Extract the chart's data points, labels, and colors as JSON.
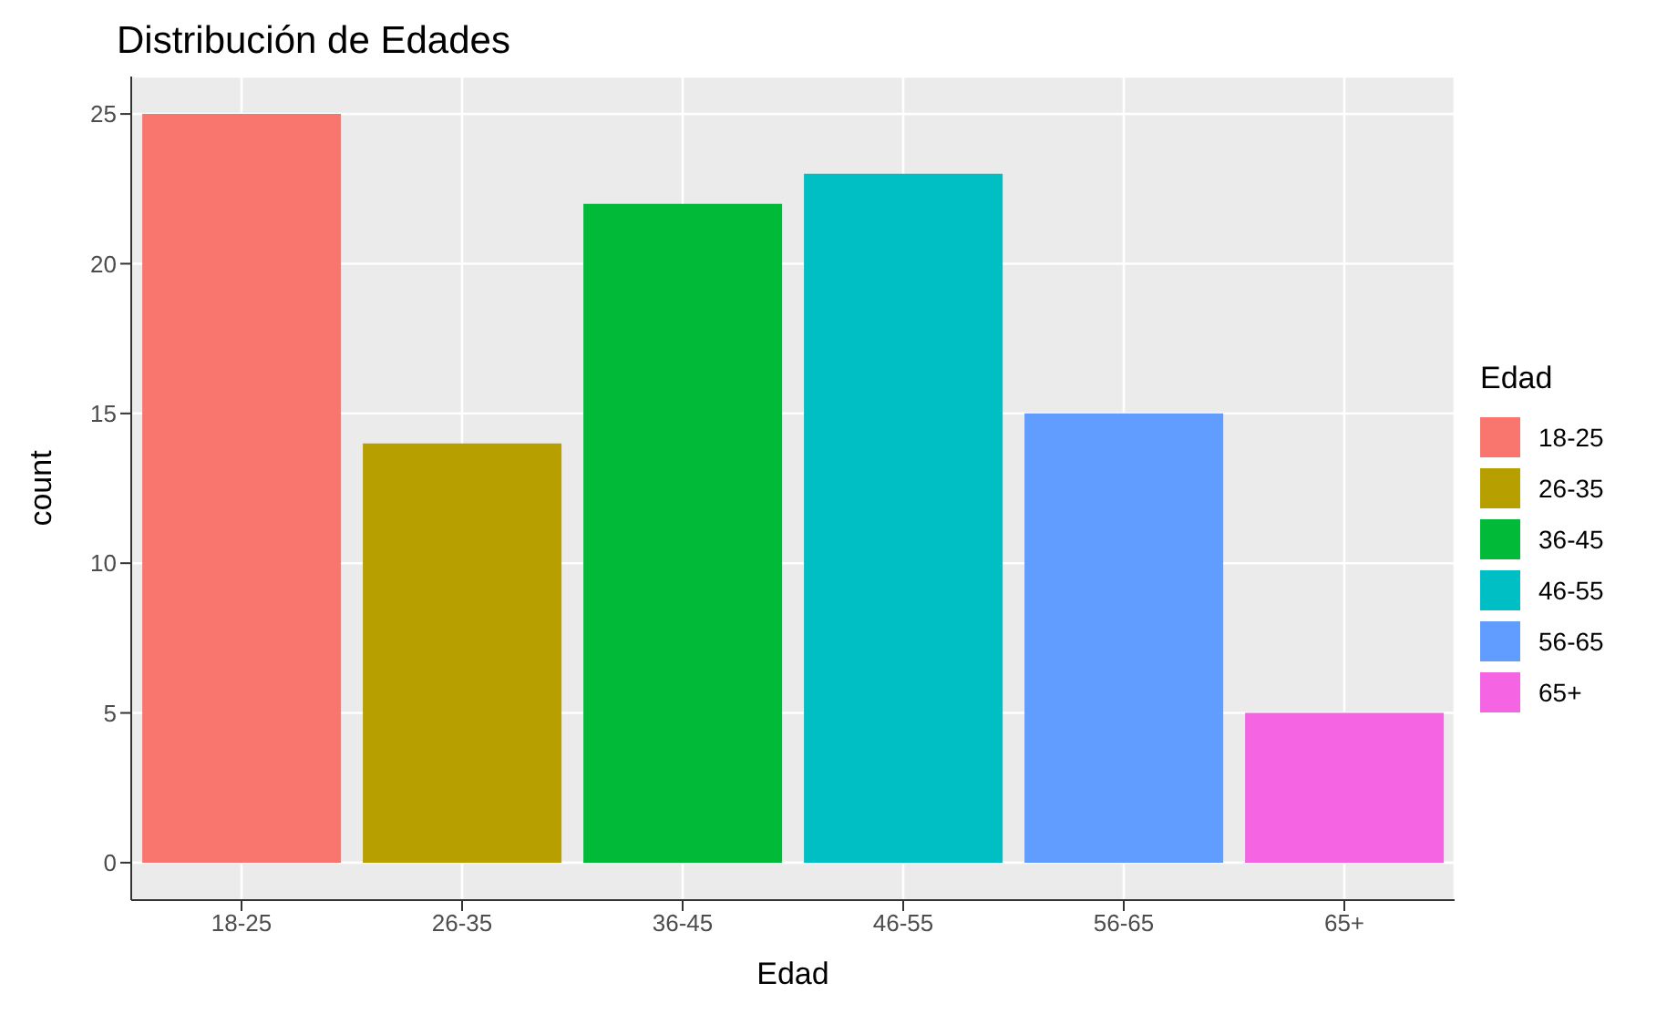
{
  "chart_data": {
    "type": "bar",
    "title": "Distribución de Edades",
    "xlabel": "Edad",
    "ylabel": "count",
    "legend_title": "Edad",
    "legend": "right",
    "grid": true,
    "categories": [
      "18-25",
      "26-35",
      "36-45",
      "46-55",
      "56-65",
      "65+"
    ],
    "series": [
      {
        "name": "18-25",
        "color": "#f8766d",
        "values": [
          25,
          null,
          null,
          null,
          null,
          null
        ]
      },
      {
        "name": "26-35",
        "color": "#b79f00",
        "values": [
          null,
          14,
          null,
          null,
          null,
          null
        ]
      },
      {
        "name": "36-45",
        "color": "#00ba38",
        "values": [
          null,
          null,
          22,
          null,
          null,
          null
        ]
      },
      {
        "name": "46-55",
        "color": "#00bfc4",
        "values": [
          null,
          null,
          null,
          23,
          null,
          null
        ]
      },
      {
        "name": "56-65",
        "color": "#619cff",
        "values": [
          null,
          null,
          null,
          null,
          15,
          null
        ]
      },
      {
        "name": "65+",
        "color": "#f564e3",
        "values": [
          null,
          null,
          null,
          null,
          null,
          5
        ]
      }
    ],
    "ylim": [
      -1.25,
      26.25
    ],
    "yticks": [
      0,
      5,
      10,
      15,
      20,
      25
    ]
  }
}
